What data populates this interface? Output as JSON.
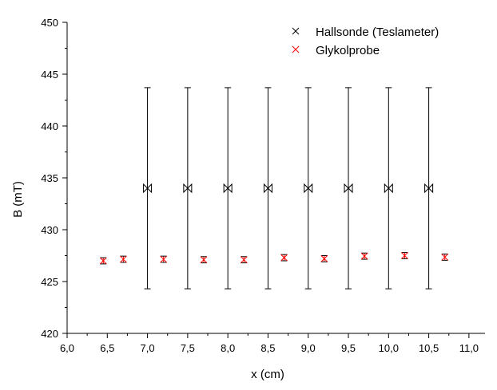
{
  "chart_data": {
    "type": "scatter",
    "xlabel": "x (cm)",
    "ylabel": "B (mT)",
    "xlim": [
      6.0,
      11.2
    ],
    "ylim": [
      420,
      450
    ],
    "x_ticks": [
      "6,0",
      "6,5",
      "7,0",
      "7,5",
      "8,0",
      "8,5",
      "9,0",
      "9,5",
      "10,0",
      "10,5",
      "11,0"
    ],
    "y_ticks": [
      "420",
      "425",
      "430",
      "435",
      "440",
      "445",
      "450"
    ],
    "grid": false,
    "legend_position": "top-right",
    "series": [
      {
        "name": "Hallsonde (Teslameter)",
        "color": "#000000",
        "marker": "bowtie-x",
        "x": [
          7.0,
          7.5,
          8.0,
          8.5,
          9.0,
          9.5,
          10.0,
          10.5
        ],
        "y": [
          434,
          434,
          434,
          434,
          434,
          434,
          434,
          434
        ],
        "error": [
          9.7,
          9.7,
          9.7,
          9.7,
          9.7,
          9.7,
          9.7,
          9.7
        ]
      },
      {
        "name": "Glykolprobe",
        "color": "#ff0000",
        "marker": "x-in-box",
        "x": [
          6.45,
          6.7,
          7.2,
          7.7,
          8.2,
          8.7,
          9.2,
          9.7,
          10.2,
          10.7
        ],
        "y": [
          427.0,
          427.15,
          427.15,
          427.1,
          427.1,
          427.3,
          427.2,
          427.45,
          427.5,
          427.35
        ],
        "error": [
          0.3,
          0.3,
          0.3,
          0.3,
          0.3,
          0.3,
          0.3,
          0.3,
          0.3,
          0.3
        ]
      }
    ]
  }
}
